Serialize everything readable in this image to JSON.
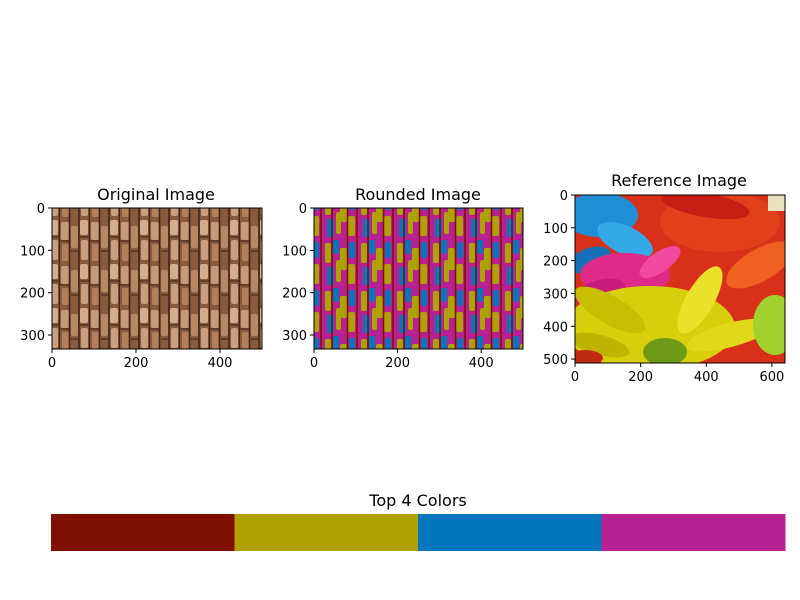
{
  "chart_data": [
    {
      "type": "image",
      "title": "Original Image",
      "description_colors": [
        "#8a5a3c",
        "#c79c7c",
        "#4a2e20"
      ],
      "xlim": [
        0,
        500
      ],
      "ylim": [
        333,
        0
      ],
      "xticks": [
        0,
        200,
        400
      ],
      "yticks": [
        0,
        100,
        200,
        300
      ]
    },
    {
      "type": "image",
      "title": "Rounded Image",
      "description_colors": [
        "#7f0f00",
        "#aea100",
        "#0476bd",
        "#b72191"
      ],
      "xlim": [
        0,
        500
      ],
      "ylim": [
        333,
        0
      ],
      "xticks": [
        0,
        200,
        400
      ],
      "yticks": [
        0,
        100,
        200,
        300
      ]
    },
    {
      "type": "image",
      "title": "Reference Image",
      "description_colors": [
        "#1a8fd8",
        "#e01c7c",
        "#d62a10",
        "#e8d400",
        "#9fce2a"
      ],
      "xlim": [
        0,
        640
      ],
      "ylim": [
        512,
        0
      ],
      "xticks": [
        0,
        200,
        400,
        600
      ],
      "yticks": [
        0,
        100,
        200,
        300,
        400,
        500
      ]
    },
    {
      "type": "bar",
      "title": "Top 4 Colors",
      "colors": [
        "#7f0f00",
        "#aea100",
        "#0476bd",
        "#b72191"
      ]
    }
  ]
}
